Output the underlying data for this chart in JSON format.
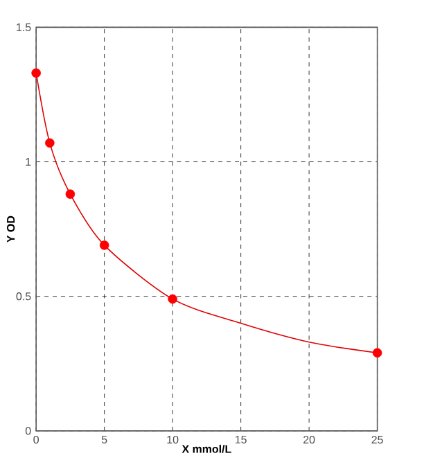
{
  "chart_data": {
    "type": "scatter",
    "xlabel": "X mmol/L",
    "ylabel": "Y OD",
    "xlim": [
      0,
      25
    ],
    "ylim": [
      0,
      1.5
    ],
    "xticks": [
      0,
      5,
      10,
      15,
      20,
      25
    ],
    "yticks": [
      0,
      0.5,
      1,
      1.5
    ],
    "grid": true,
    "marker": "circle",
    "series": [
      {
        "type": "line",
        "color": "#e00000",
        "marker": "none",
        "line_style": "solid",
        "x": [
          0,
          1,
          2.5,
          5,
          10,
          15,
          20,
          25
        ],
        "values": [
          1.33,
          1.07,
          0.88,
          0.69,
          0.49,
          0.4,
          0.33,
          0.29
        ]
      },
      {
        "color": "#ff0000",
        "x": [
          0,
          1,
          2.5,
          5,
          10,
          25
        ],
        "values": [
          1.33,
          1.07,
          0.88,
          0.69,
          0.49,
          0.29
        ]
      }
    ]
  }
}
